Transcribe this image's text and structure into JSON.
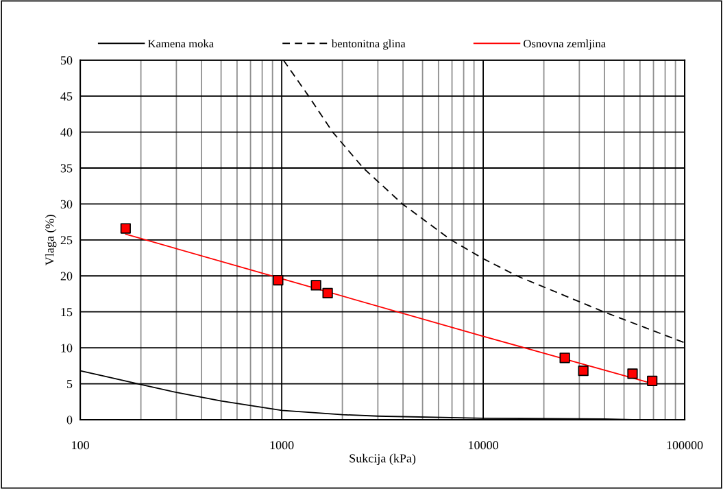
{
  "chart_data": {
    "type": "line",
    "xlabel": "Sukcija (kPa)",
    "ylabel": "Vlaga (%)",
    "log": "x",
    "xlim": [
      100,
      100000
    ],
    "xticks": [
      100,
      1000,
      10000,
      100000
    ],
    "ylim": [
      0,
      50
    ],
    "yticks": [
      0,
      5,
      10,
      15,
      20,
      25,
      30,
      35,
      40,
      45,
      50
    ],
    "grid": true,
    "legend": "top",
    "series": [
      {
        "name": "Kamena moka",
        "color": "#000000",
        "line_style": "solid",
        "marker": "none",
        "x": [
          100,
          130,
          200,
          300,
          500,
          1000,
          2000,
          3000,
          10000,
          40000,
          55000,
          100000
        ],
        "values": [
          6.8,
          6.1,
          4.9,
          3.8,
          2.6,
          1.3,
          0.7,
          0.5,
          0.2,
          0.1,
          0,
          0
        ]
      },
      {
        "name": "bentonitna glina",
        "color": "#000000",
        "line_style": "dashed",
        "marker": "none",
        "x": [
          1020,
          1360,
          1790,
          2540,
          3970,
          6920,
          10000,
          14700,
          39700,
          100000
        ],
        "values": [
          50,
          45,
          40,
          35,
          30,
          25,
          22.4,
          20,
          15,
          10.7
        ]
      },
      {
        "name": "Osnovna zemljina",
        "color": "#ff0000",
        "line_style": "solid",
        "marker": "none",
        "x": [
          168,
          1000,
          10000,
          70000
        ],
        "values": [
          25.8,
          19.6,
          11.6,
          5.0
        ]
      },
      {
        "type": "scatter",
        "color": "#ff0000",
        "marker": "square",
        "x": [
          168,
          960,
          1480,
          1690,
          25400,
          31400,
          55100,
          69000
        ],
        "values": [
          26.6,
          19.4,
          18.7,
          17.6,
          8.6,
          6.8,
          6.4,
          5.4
        ]
      }
    ]
  }
}
